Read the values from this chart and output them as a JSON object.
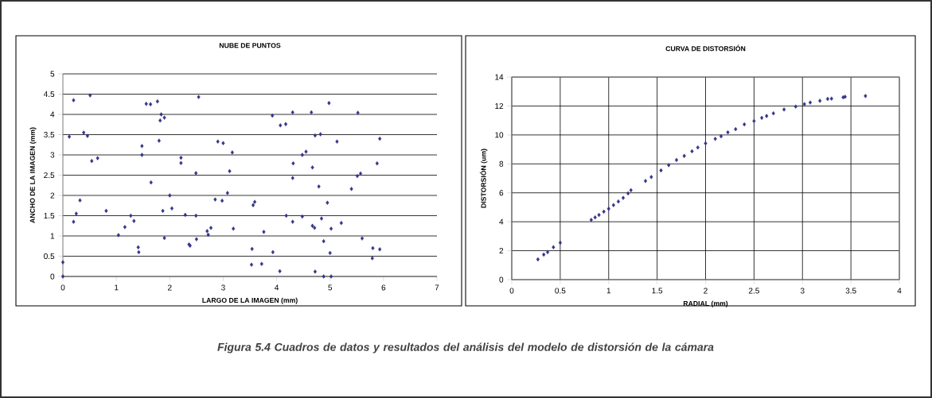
{
  "chart_data": [
    {
      "type": "scatter",
      "title": "NUBE DE PUNTOS",
      "xlabel": "LARGO DE LA IMAGEN (mm)",
      "ylabel": "ANCHO DE LA IMAGEN (mm)",
      "marker": "diamond",
      "grid": "y",
      "xlim": [
        0,
        7
      ],
      "xticks": [
        0,
        1,
        2,
        3,
        4,
        5,
        6,
        7
      ],
      "ylim": [
        0,
        5
      ],
      "yticks": [
        0,
        0.5,
        1,
        1.5,
        2,
        2.5,
        3,
        3.5,
        4,
        4.5,
        5
      ],
      "annotations": [
        "Figura 5.4 Cuadros de datos y resultados del análisis del modelo de distorsión de la cámara"
      ],
      "series": [
        {
          "color": "#333388",
          "x": [
            0,
            0,
            0.12,
            0.2,
            0.2,
            0.25,
            0.32,
            0.39,
            0.46,
            0.51,
            0.54,
            0.65,
            0.81,
            1.04,
            1.16,
            1.27,
            1.33,
            1.41,
            1.42,
            1.48,
            1.48,
            1.56,
            1.64,
            1.65,
            1.77,
            1.8,
            1.82,
            1.84,
            1.87,
            1.9,
            1.9,
            2.0,
            2.04,
            2.21,
            2.21,
            2.29,
            2.36,
            2.38,
            2.49,
            2.49,
            2.5,
            2.54,
            2.7,
            2.72,
            2.77,
            2.85,
            2.9,
            2.98,
            3.0,
            3.17,
            3.12,
            3.08,
            3.19,
            3.54,
            3.53,
            3.72,
            3.56,
            3.59,
            3.76,
            3.92,
            3.93,
            4.07,
            4.17,
            4.06,
            4.18,
            4.3,
            4.31,
            4.3,
            4.3,
            4.48,
            4.55,
            4.48,
            4.65,
            4.67,
            4.72,
            4.82,
            4.79,
            4.67,
            4.71,
            4.72,
            4.84,
            4.88,
            4.88,
            4.95,
            4.98,
            5.0,
            5.02,
            5.02,
            5.13,
            5.21,
            5.4,
            5.52,
            5.51,
            5.57,
            5.6,
            5.8,
            5.79,
            5.88,
            5.93,
            5.93
          ],
          "values": [
            0.35,
            0,
            3.45,
            4.35,
            1.35,
            1.55,
            1.88,
            3.55,
            3.47,
            4.47,
            2.85,
            2.92,
            1.62,
            1.02,
            1.22,
            1.5,
            1.37,
            0.72,
            0.6,
            3.22,
            3.0,
            4.26,
            4.25,
            2.32,
            4.32,
            3.35,
            3.85,
            4.0,
            1.62,
            3.92,
            0.95,
            2.0,
            1.68,
            2.93,
            2.8,
            1.52,
            0.79,
            0.76,
            2.55,
            1.5,
            0.92,
            4.43,
            1.12,
            1.03,
            1.2,
            1.9,
            3.33,
            1.87,
            3.29,
            3.06,
            2.6,
            2.06,
            1.18,
            0.68,
            0.29,
            0.31,
            1.76,
            1.84,
            1.1,
            3.97,
            0.6,
            3.73,
            3.76,
            0.13,
            1.5,
            4.05,
            2.79,
            2.43,
            1.35,
            3.0,
            3.08,
            1.48,
            4.05,
            2.69,
            3.48,
            3.51,
            2.22,
            1.25,
            1.2,
            0.12,
            1.43,
            0.87,
            0,
            1.82,
            4.28,
            0.58,
            0,
            1.18,
            3.33,
            1.32,
            2.16,
            4.04,
            2.48,
            2.54,
            0.94,
            0.7,
            0.45,
            2.79,
            3.4,
            0.67
          ]
        }
      ]
    },
    {
      "type": "scatter",
      "title": "CURVA DE DISTORSIÓN",
      "xlabel": "RADIAL (mm)",
      "ylabel": "DISTORSIÓN (um)",
      "marker": "diamond",
      "grid": true,
      "xlim": [
        0,
        4
      ],
      "xticks": [
        0,
        0.5,
        1,
        1.5,
        2,
        2.5,
        3,
        3.5,
        4
      ],
      "ylim": [
        0,
        14
      ],
      "yticks": [
        0,
        2,
        4,
        6,
        8,
        10,
        12,
        14
      ],
      "series": [
        {
          "color": "#333388",
          "x": [
            0.27,
            0.33,
            0.37,
            0.43,
            0.5,
            0.82,
            0.86,
            0.9,
            0.95,
            1.0,
            1.05,
            1.1,
            1.15,
            1.2,
            1.23,
            1.38,
            1.44,
            1.54,
            1.62,
            1.7,
            1.78,
            1.86,
            1.92,
            2.0,
            2.1,
            2.16,
            2.23,
            2.31,
            2.4,
            2.5,
            2.58,
            2.63,
            2.7,
            2.81,
            2.93,
            3.02,
            3.08,
            3.18,
            3.26,
            3.3,
            3.42,
            3.44,
            3.65
          ],
          "values": [
            1.4,
            1.73,
            1.9,
            2.24,
            2.55,
            4.13,
            4.3,
            4.47,
            4.7,
            4.9,
            5.15,
            5.4,
            5.65,
            5.96,
            6.18,
            6.82,
            7.09,
            7.55,
            7.91,
            8.27,
            8.55,
            8.87,
            9.13,
            9.42,
            9.73,
            9.91,
            10.18,
            10.4,
            10.73,
            10.96,
            11.18,
            11.31,
            11.49,
            11.76,
            11.96,
            12.13,
            12.24,
            12.36,
            12.49,
            12.51,
            12.6,
            12.64,
            12.69
          ]
        }
      ]
    }
  ]
}
